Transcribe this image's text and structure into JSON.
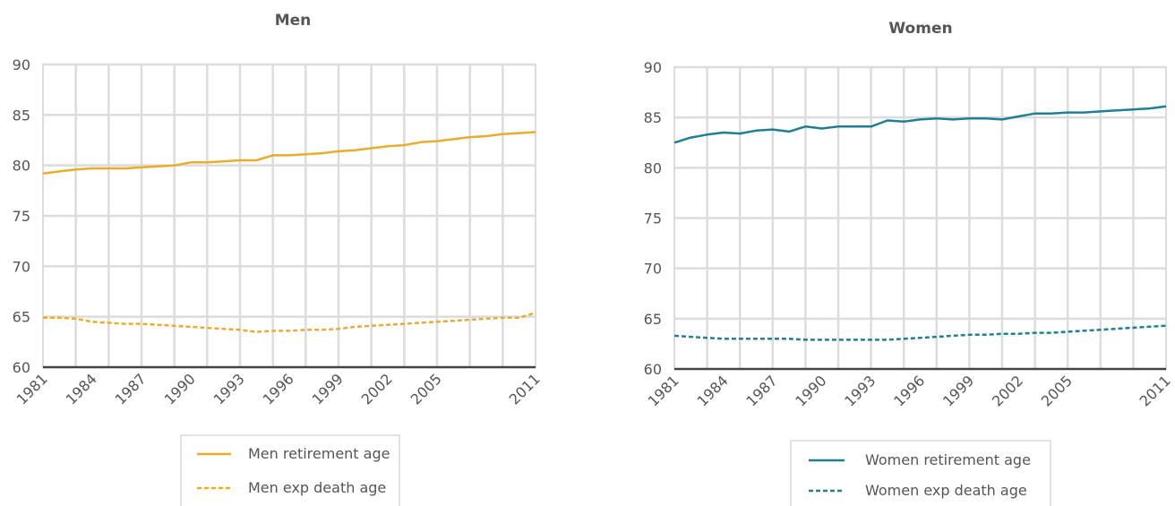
{
  "colors": {
    "men": "#e9ac2f",
    "women": "#1f7f93"
  },
  "chart_data": [
    {
      "type": "line",
      "title": "Men",
      "xlabel": "",
      "ylabel": "",
      "ylim": [
        60,
        90
      ],
      "yticks": [
        "60",
        "65",
        "70",
        "75",
        "80",
        "85",
        "90"
      ],
      "xlim": [
        1981,
        2011
      ],
      "xticks": [
        "1981",
        "1984",
        "1987",
        "1990",
        "1993",
        "1996",
        "1999",
        "2002",
        "2005",
        "2011"
      ],
      "grid": true,
      "legend": "bottom",
      "x": [
        1981,
        1982,
        1983,
        1984,
        1985,
        1986,
        1987,
        1988,
        1989,
        1990,
        1991,
        1992,
        1993,
        1994,
        1995,
        1996,
        1997,
        1998,
        1999,
        2000,
        2001,
        2002,
        2003,
        2004,
        2005,
        2006,
        2007,
        2008,
        2009,
        2010,
        2011
      ],
      "series": [
        {
          "name": "Men retirement age",
          "style": "solid",
          "values": [
            79.2,
            79.4,
            79.6,
            79.7,
            79.7,
            79.7,
            79.8,
            79.9,
            80.0,
            80.3,
            80.3,
            80.4,
            80.5,
            80.5,
            81.0,
            81.0,
            81.1,
            81.2,
            81.4,
            81.5,
            81.7,
            81.9,
            82.0,
            82.3,
            82.4,
            82.6,
            82.8,
            82.9,
            83.1,
            83.2,
            83.3
          ]
        },
        {
          "name": "Men exp death age",
          "style": "dashed",
          "values": [
            64.9,
            64.9,
            64.8,
            64.5,
            64.4,
            64.3,
            64.3,
            64.2,
            64.1,
            64.0,
            63.9,
            63.8,
            63.7,
            63.5,
            63.6,
            63.6,
            63.7,
            63.7,
            63.8,
            64.0,
            64.1,
            64.2,
            64.3,
            64.4,
            64.5,
            64.6,
            64.7,
            64.8,
            64.9,
            64.9,
            65.4
          ]
        }
      ]
    },
    {
      "type": "line",
      "title": "Women",
      "xlabel": "",
      "ylabel": "",
      "ylim": [
        60,
        90
      ],
      "yticks": [
        "60",
        "65",
        "70",
        "75",
        "80",
        "85",
        "90"
      ],
      "xlim": [
        1981,
        2011
      ],
      "xticks": [
        "1981",
        "1984",
        "1987",
        "1990",
        "1993",
        "1996",
        "1999",
        "2002",
        "2005",
        "2011"
      ],
      "grid": true,
      "legend": "bottom",
      "x": [
        1981,
        1982,
        1983,
        1984,
        1985,
        1986,
        1987,
        1988,
        1989,
        1990,
        1991,
        1992,
        1993,
        1994,
        1995,
        1996,
        1997,
        1998,
        1999,
        2000,
        2001,
        2002,
        2003,
        2004,
        2005,
        2006,
        2007,
        2008,
        2009,
        2010,
        2011
      ],
      "series": [
        {
          "name": "Women retirement age",
          "style": "solid",
          "values": [
            82.5,
            83.0,
            83.3,
            83.5,
            83.4,
            83.7,
            83.8,
            83.6,
            84.1,
            83.9,
            84.1,
            84.1,
            84.1,
            84.7,
            84.6,
            84.8,
            84.9,
            84.8,
            84.9,
            84.9,
            84.8,
            85.1,
            85.4,
            85.4,
            85.5,
            85.5,
            85.6,
            85.7,
            85.8,
            85.9,
            86.1
          ]
        },
        {
          "name": "Women exp death age",
          "style": "dashed",
          "values": [
            63.3,
            63.2,
            63.1,
            63.0,
            63.0,
            63.0,
            63.0,
            63.0,
            62.9,
            62.9,
            62.9,
            62.9,
            62.9,
            62.9,
            63.0,
            63.1,
            63.2,
            63.3,
            63.4,
            63.4,
            63.5,
            63.5,
            63.6,
            63.6,
            63.7,
            63.8,
            63.9,
            64.0,
            64.1,
            64.2,
            64.3
          ]
        }
      ]
    }
  ]
}
